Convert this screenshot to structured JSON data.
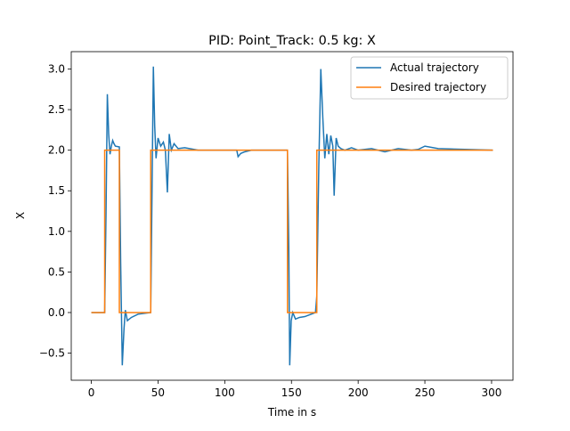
{
  "chart_data": {
    "type": "line",
    "title": "PID: Point_Track: 0.5 kg: X",
    "xlabel": "Time in s",
    "ylabel": "X",
    "xlim": [
      -15.05,
      316.05
    ],
    "ylim": [
      -0.834,
      3.214
    ],
    "xticks": [
      0,
      50,
      100,
      150,
      200,
      250,
      300
    ],
    "yticks": [
      {
        "value": -0.5,
        "label": "−0.5"
      },
      {
        "value": 0,
        "label": "0.0"
      },
      {
        "value": 0.5,
        "label": "0.5"
      },
      {
        "value": 1,
        "label": "1.0"
      },
      {
        "value": 1.5,
        "label": "1.5"
      },
      {
        "value": 2,
        "label": "2.0"
      },
      {
        "value": 2.5,
        "label": "2.5"
      },
      {
        "value": 3,
        "label": "3.0"
      }
    ],
    "legend": "upper right",
    "series": [
      {
        "name": "Actual trajectory",
        "color": "#1f77b4",
        "x": [
          0,
          10,
          11,
          12,
          13,
          14,
          15,
          16,
          17,
          18,
          21,
          22,
          23.2,
          24.5,
          25.5,
          27,
          30,
          35,
          44.5,
          45.5,
          46.5,
          47.5,
          48.5,
          50,
          52,
          54,
          55.5,
          57,
          58.4,
          60,
          62,
          65,
          70,
          80,
          100,
          109,
          110,
          112,
          115,
          120,
          130,
          147,
          148,
          148.7,
          149.8,
          151,
          153,
          156,
          160,
          168,
          169,
          170.5,
          172,
          173.5,
          175,
          176.5,
          178,
          179.5,
          181,
          182,
          183.5,
          185,
          187,
          190,
          195,
          200,
          210,
          220,
          230,
          240,
          245,
          250,
          260,
          301
        ],
        "values": [
          0,
          0,
          1.2,
          2.69,
          2.2,
          1.95,
          2.05,
          2.12,
          2.08,
          2.05,
          2.04,
          0.6,
          -0.65,
          -0.2,
          0.03,
          -0.1,
          -0.06,
          -0.02,
          0,
          1.5,
          3.03,
          2.3,
          1.9,
          2.15,
          2.05,
          2.1,
          2.0,
          1.48,
          2.2,
          2.0,
          2.08,
          2.02,
          2.03,
          2.0,
          2.0,
          2.0,
          1.92,
          1.96,
          1.98,
          2.0,
          2.0,
          2.0,
          0.8,
          -0.65,
          -0.1,
          0.0,
          -0.08,
          -0.06,
          -0.05,
          0,
          0.2,
          1.8,
          3.0,
          2.4,
          1.9,
          2.2,
          1.95,
          2.18,
          2.05,
          1.44,
          2.15,
          2.05,
          2.02,
          2.0,
          2.03,
          2.0,
          2.02,
          1.98,
          2.02,
          2.0,
          2.01,
          2.05,
          2.02,
          2.0
        ]
      },
      {
        "name": "Desired trajectory",
        "color": "#ff7f0e",
        "x": [
          0,
          10,
          10,
          21,
          21,
          44.5,
          44.5,
          147,
          147,
          169,
          169,
          301
        ],
        "values": [
          0,
          0,
          2,
          2,
          0,
          0,
          2,
          2,
          0,
          0,
          2,
          2
        ]
      }
    ]
  }
}
